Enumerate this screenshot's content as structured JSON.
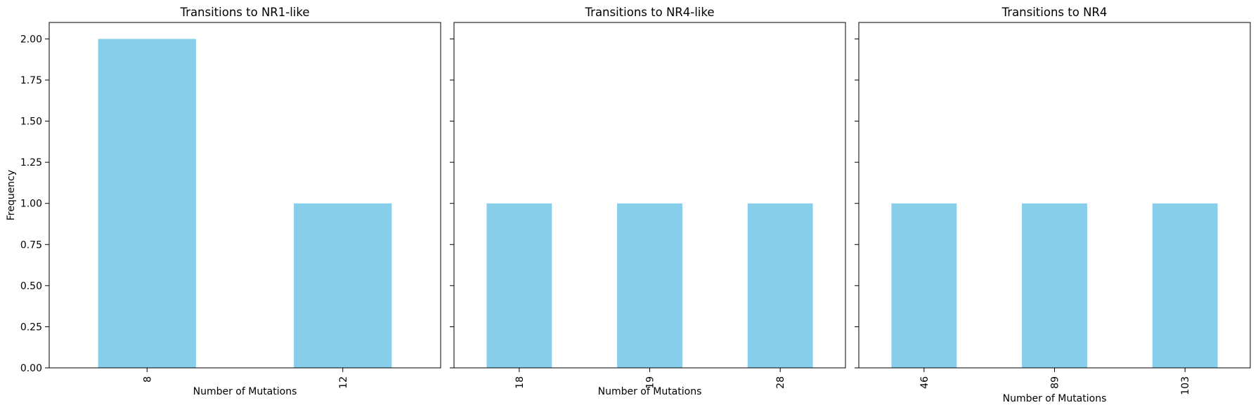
{
  "chart_data": [
    {
      "type": "bar",
      "title": "Transitions to NR1-like",
      "xlabel": "Number of Mutations",
      "ylabel": "Frequency",
      "categories": [
        "8",
        "12"
      ],
      "values": [
        2,
        1
      ],
      "ylim": [
        0,
        2.1
      ],
      "yticks": [
        "0.00",
        "0.25",
        "0.50",
        "0.75",
        "1.00",
        "1.25",
        "1.50",
        "1.75",
        "2.00"
      ],
      "bar_color": "#87CEEB",
      "grid": false
    },
    {
      "type": "bar",
      "title": "Transitions to NR4-like",
      "xlabel": "Number of Mutations",
      "ylabel": "",
      "categories": [
        "18",
        "19",
        "28"
      ],
      "values": [
        1,
        1,
        1
      ],
      "ylim": [
        0,
        2.1
      ],
      "bar_color": "#87CEEB",
      "grid": false
    },
    {
      "type": "bar",
      "title": "Transitions to NR4",
      "xlabel": "Number of Mutations",
      "ylabel": "",
      "categories": [
        "46",
        "89",
        "103"
      ],
      "values": [
        1,
        1,
        1
      ],
      "ylim": [
        0,
        2.1
      ],
      "bar_color": "#87CEEB",
      "grid": false
    }
  ]
}
